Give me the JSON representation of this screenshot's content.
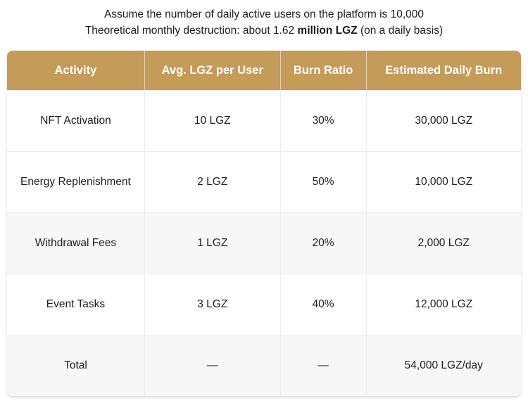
{
  "caption": {
    "line1": "Assume the number of daily active users on the platform is 10,000",
    "line2_prefix": "Theoretical monthly destruction: about 1.62 ",
    "line2_bold": "million LGZ",
    "line2_suffix": " (on a daily basis)"
  },
  "table": {
    "columns": [
      "Activity",
      "Avg. LGZ per User",
      "Burn Ratio",
      "Estimated Daily Burn"
    ],
    "rows": [
      [
        "NFT Activation",
        "10 LGZ",
        "30%",
        "30,000 LGZ"
      ],
      [
        "Energy Replenishment",
        "2 LGZ",
        "50%",
        "10,000 LGZ"
      ],
      [
        "Withdrawal Fees",
        "1 LGZ",
        "20%",
        "2,000 LGZ"
      ],
      [
        "Event Tasks",
        "3 LGZ",
        "40%",
        "12,000 LGZ"
      ],
      [
        "Total",
        "—",
        "—",
        "54,000 LGZ/day"
      ]
    ]
  },
  "colors": {
    "header_bg": "#c49b58",
    "header_text": "#ffffff",
    "row_alt_bg": "#f7f7f7",
    "divider": "#ececee",
    "body_text": "#1d1d1f"
  }
}
